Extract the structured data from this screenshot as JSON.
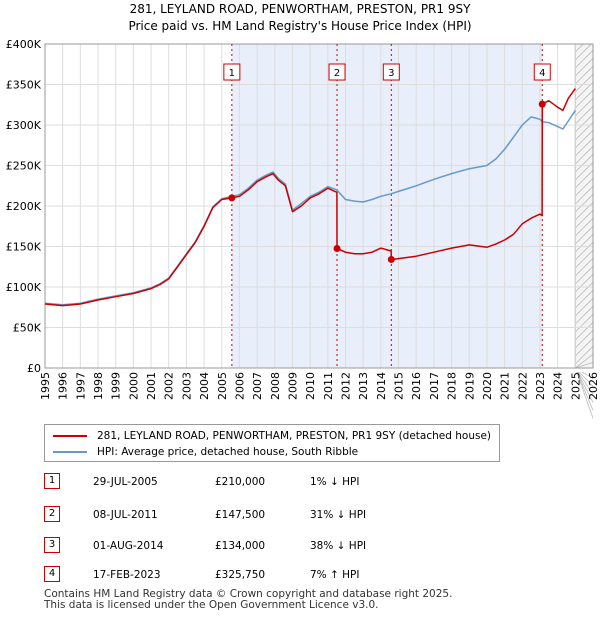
{
  "chart_data": {
    "type": "line",
    "title": "281, LEYLAND ROAD, PENWORTHAM, PRESTON, PR1 9SY",
    "subtitle": "Price paid vs. HM Land Registry's House Price Index (HPI)",
    "xlabel": "",
    "ylabel": "",
    "xlim": [
      1995,
      2026
    ],
    "ylim": [
      0,
      400000
    ],
    "x_ticks": [
      1995,
      1996,
      1997,
      1998,
      1999,
      2000,
      2001,
      2002,
      2003,
      2004,
      2005,
      2006,
      2007,
      2008,
      2009,
      2010,
      2011,
      2012,
      2013,
      2014,
      2015,
      2016,
      2017,
      2018,
      2019,
      2020,
      2021,
      2022,
      2023,
      2024,
      2025,
      2026
    ],
    "y_ticks": [
      0,
      50000,
      100000,
      150000,
      200000,
      250000,
      300000,
      350000,
      400000
    ],
    "y_tick_labels": [
      "£0",
      "£50K",
      "£100K",
      "£150K",
      "£200K",
      "£250K",
      "£300K",
      "£350K",
      "£400K"
    ],
    "forecast_from": 2025.0,
    "colors": {
      "property": "#cc0000",
      "hpi": "#6699cc",
      "shade": "#e8eefa",
      "marker_line": "#cc0000"
    },
    "series": [
      {
        "name": "281, LEYLAND ROAD, PENWORTHAM, PRESTON, PR1 9SY (detached house)",
        "color": "#cc0000",
        "points": [
          [
            1995.0,
            79000
          ],
          [
            1996.0,
            77000
          ],
          [
            1997.0,
            79000
          ],
          [
            1998.0,
            84000
          ],
          [
            1999.0,
            88000
          ],
          [
            2000.0,
            92000
          ],
          [
            2001.0,
            98000
          ],
          [
            2001.5,
            103000
          ],
          [
            2002.0,
            110000
          ],
          [
            2002.5,
            125000
          ],
          [
            2003.0,
            140000
          ],
          [
            2003.5,
            155000
          ],
          [
            2004.0,
            175000
          ],
          [
            2004.5,
            198000
          ],
          [
            2005.0,
            208000
          ],
          [
            2005.57,
            210000
          ],
          [
            2006.0,
            212000
          ],
          [
            2006.5,
            220000
          ],
          [
            2007.0,
            230000
          ],
          [
            2007.5,
            236000
          ],
          [
            2007.9,
            240000
          ],
          [
            2008.2,
            232000
          ],
          [
            2008.6,
            225000
          ],
          [
            2009.0,
            193000
          ],
          [
            2009.5,
            200000
          ],
          [
            2010.0,
            210000
          ],
          [
            2010.5,
            215000
          ],
          [
            2011.0,
            222000
          ],
          [
            2011.4,
            218000
          ],
          [
            2011.51,
            217000
          ],
          [
            2011.52,
            147500
          ],
          [
            2012.0,
            143000
          ],
          [
            2012.5,
            141000
          ],
          [
            2013.0,
            141000
          ],
          [
            2013.5,
            143000
          ],
          [
            2014.0,
            148000
          ],
          [
            2014.5,
            145000
          ],
          [
            2014.58,
            145000
          ],
          [
            2014.59,
            134000
          ],
          [
            2015.0,
            135000
          ],
          [
            2016.0,
            138000
          ],
          [
            2017.0,
            143000
          ],
          [
            2018.0,
            148000
          ],
          [
            2019.0,
            152000
          ],
          [
            2020.0,
            149000
          ],
          [
            2020.5,
            153000
          ],
          [
            2021.0,
            158000
          ],
          [
            2021.5,
            165000
          ],
          [
            2022.0,
            178000
          ],
          [
            2022.5,
            185000
          ],
          [
            2023.0,
            190000
          ],
          [
            2023.12,
            188000
          ],
          [
            2023.13,
            325750
          ],
          [
            2023.5,
            330000
          ],
          [
            2024.0,
            322000
          ],
          [
            2024.3,
            318000
          ],
          [
            2024.6,
            333000
          ],
          [
            2025.0,
            345000
          ]
        ]
      },
      {
        "name": "HPI: Average price, detached house, South Ribble",
        "color": "#6699cc",
        "points": [
          [
            1995.0,
            80000
          ],
          [
            1996.0,
            78000
          ],
          [
            1997.0,
            80000
          ],
          [
            1998.0,
            85000
          ],
          [
            1999.0,
            89000
          ],
          [
            2000.0,
            93000
          ],
          [
            2001.0,
            99000
          ],
          [
            2001.5,
            104000
          ],
          [
            2002.0,
            111000
          ],
          [
            2002.5,
            126000
          ],
          [
            2003.0,
            141000
          ],
          [
            2003.5,
            156000
          ],
          [
            2004.0,
            176000
          ],
          [
            2004.5,
            199000
          ],
          [
            2005.0,
            209000
          ],
          [
            2005.57,
            212000
          ],
          [
            2006.0,
            214000
          ],
          [
            2006.5,
            222000
          ],
          [
            2007.0,
            232000
          ],
          [
            2007.5,
            238000
          ],
          [
            2007.9,
            242000
          ],
          [
            2008.2,
            234000
          ],
          [
            2008.6,
            227000
          ],
          [
            2009.0,
            195000
          ],
          [
            2009.5,
            203000
          ],
          [
            2010.0,
            212000
          ],
          [
            2010.5,
            217000
          ],
          [
            2011.0,
            224000
          ],
          [
            2011.5,
            220000
          ],
          [
            2012.0,
            208000
          ],
          [
            2012.5,
            206000
          ],
          [
            2013.0,
            205000
          ],
          [
            2013.5,
            208000
          ],
          [
            2014.0,
            212000
          ],
          [
            2014.58,
            215000
          ],
          [
            2015.0,
            218000
          ],
          [
            2016.0,
            225000
          ],
          [
            2017.0,
            233000
          ],
          [
            2018.0,
            240000
          ],
          [
            2019.0,
            246000
          ],
          [
            2020.0,
            250000
          ],
          [
            2020.5,
            258000
          ],
          [
            2021.0,
            270000
          ],
          [
            2021.5,
            285000
          ],
          [
            2022.0,
            300000
          ],
          [
            2022.5,
            310000
          ],
          [
            2023.0,
            307000
          ],
          [
            2023.13,
            304000
          ],
          [
            2023.5,
            303000
          ],
          [
            2024.0,
            298000
          ],
          [
            2024.3,
            295000
          ],
          [
            2024.6,
            305000
          ],
          [
            2025.0,
            318000
          ]
        ]
      }
    ],
    "sales": [
      {
        "label": "1",
        "x": 2005.57,
        "price": 210000
      },
      {
        "label": "2",
        "x": 2011.52,
        "price": 147500
      },
      {
        "label": "3",
        "x": 2014.59,
        "price": 134000
      },
      {
        "label": "4",
        "x": 2023.13,
        "price": 325750
      }
    ]
  },
  "legend": {
    "property_label": "281, LEYLAND ROAD, PENWORTHAM, PRESTON, PR1 9SY (detached house)",
    "hpi_label": "HPI: Average price, detached house, South Ribble"
  },
  "table": [
    {
      "num": "1",
      "date": "29-JUL-2005",
      "price": "£210,000",
      "hpi": "1% ↓ HPI"
    },
    {
      "num": "2",
      "date": "08-JUL-2011",
      "price": "£147,500",
      "hpi": "31% ↓ HPI"
    },
    {
      "num": "3",
      "date": "01-AUG-2014",
      "price": "£134,000",
      "hpi": "38% ↓ HPI"
    },
    {
      "num": "4",
      "date": "17-FEB-2023",
      "price": "£325,750",
      "hpi": "7% ↑ HPI"
    }
  ],
  "footer": {
    "line1": "Contains HM Land Registry data © Crown copyright and database right 2025.",
    "line2": "This data is licensed under the Open Government Licence v3.0."
  }
}
